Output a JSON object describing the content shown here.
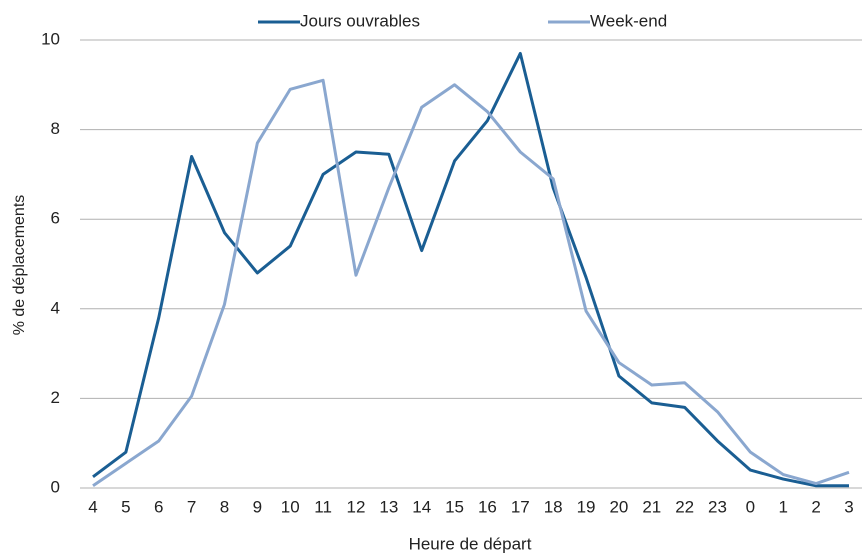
{
  "chart_data": {
    "type": "line",
    "xlabel": "Heure de départ",
    "ylabel": "% de déplacements",
    "categories": [
      "4",
      "5",
      "6",
      "7",
      "8",
      "9",
      "10",
      "11",
      "12",
      "13",
      "14",
      "15",
      "16",
      "17",
      "18",
      "19",
      "20",
      "21",
      "22",
      "23",
      "0",
      "1",
      "2",
      "3"
    ],
    "series": [
      {
        "name": "Jours ouvrables",
        "color": "#1a5e93",
        "values": [
          0.25,
          0.8,
          3.8,
          7.4,
          5.7,
          4.8,
          5.4,
          7.0,
          7.5,
          7.45,
          5.3,
          7.3,
          8.2,
          9.7,
          6.7,
          4.7,
          2.5,
          1.9,
          1.8,
          1.05,
          0.4,
          0.2,
          0.05,
          0.05
        ]
      },
      {
        "name": "Week-end",
        "color": "#8aa7cf",
        "values": [
          0.05,
          0.55,
          1.05,
          2.05,
          4.1,
          7.7,
          8.9,
          9.1,
          4.75,
          6.7,
          8.5,
          9.0,
          8.4,
          7.5,
          6.9,
          3.95,
          2.8,
          2.3,
          2.35,
          1.7,
          0.8,
          0.3,
          0.1,
          0.35
        ]
      }
    ],
    "ylim": [
      0,
      10
    ],
    "yticks": [
      0,
      2,
      4,
      6,
      8,
      10
    ],
    "grid": true
  }
}
